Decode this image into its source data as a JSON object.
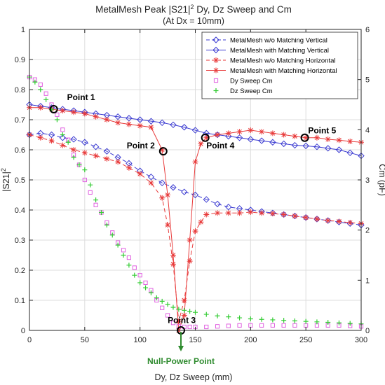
{
  "chart_data": {
    "type": "line",
    "title": "MetalMesh Peak |S21|",
    "title_sup": "2",
    "title_rest": " Dy, Dz Sweep and Cm",
    "subtitle": "(At Dx = 10mm)",
    "xlabel": "Dy, Dz Sweep (mm)",
    "ylabel_left": "|S21|",
    "ylabel_left_sup": "2",
    "ylabel_right": "Cm (pF)",
    "xlim": [
      0,
      300
    ],
    "ylim_left": [
      0,
      1
    ],
    "ylim_right": [
      0,
      6
    ],
    "x_ticks": [
      "0",
      "50",
      "100",
      "150",
      "200",
      "250",
      "300"
    ],
    "y_left_ticks": [
      "0",
      "0.1",
      "0.2",
      "0.3",
      "0.4",
      "0.5",
      "0.6",
      "0.7",
      "0.8",
      "0.9",
      "1"
    ],
    "y_right_ticks": [
      "0",
      "1",
      "2",
      "3",
      "4",
      "5",
      "6"
    ],
    "grid": true,
    "legend_position": "top-right",
    "series": [
      {
        "name": "MetalMesh w/o Matching Vertical",
        "axis": "left",
        "color": "#3b3bd1",
        "dash": true,
        "marker": "diamond",
        "x": [
          0,
          10,
          20,
          30,
          40,
          50,
          60,
          70,
          80,
          90,
          100,
          110,
          120,
          130,
          140,
          150,
          160,
          170,
          180,
          190,
          200,
          210,
          220,
          230,
          240,
          250,
          260,
          270,
          280,
          290,
          300
        ],
        "y": [
          0.65,
          0.655,
          0.65,
          0.64,
          0.635,
          0.625,
          0.61,
          0.595,
          0.575,
          0.555,
          0.53,
          0.51,
          0.49,
          0.475,
          0.46,
          0.45,
          0.435,
          0.42,
          0.41,
          0.405,
          0.4,
          0.395,
          0.39,
          0.385,
          0.38,
          0.375,
          0.37,
          0.365,
          0.36,
          0.355,
          0.35
        ]
      },
      {
        "name": "MetalMesh with Matching Vertical",
        "axis": "left",
        "color": "#3b3bd1",
        "dash": false,
        "marker": "diamond",
        "x": [
          0,
          10,
          20,
          30,
          40,
          50,
          60,
          70,
          80,
          90,
          100,
          110,
          120,
          130,
          140,
          150,
          160,
          170,
          180,
          190,
          200,
          210,
          220,
          230,
          240,
          250,
          260,
          270,
          280,
          290,
          300
        ],
        "y": [
          0.75,
          0.745,
          0.74,
          0.735,
          0.73,
          0.725,
          0.72,
          0.715,
          0.71,
          0.705,
          0.7,
          0.695,
          0.69,
          0.683,
          0.675,
          0.665,
          0.655,
          0.65,
          0.645,
          0.64,
          0.635,
          0.63,
          0.625,
          0.62,
          0.615,
          0.613,
          0.61,
          0.605,
          0.6,
          0.59,
          0.58
        ]
      },
      {
        "name": "MetalMesh w/o Matching Horizontal",
        "axis": "left",
        "color": "#e83a3a",
        "dash": true,
        "marker": "star",
        "x": [
          0,
          10,
          20,
          30,
          40,
          50,
          60,
          70,
          80,
          90,
          100,
          110,
          120,
          125,
          130,
          135,
          140,
          145,
          150,
          155,
          160,
          170,
          180,
          190,
          200,
          210,
          220,
          230,
          240,
          250,
          260,
          270,
          280,
          290,
          300
        ],
        "y": [
          0.65,
          0.64,
          0.63,
          0.615,
          0.6,
          0.59,
          0.58,
          0.57,
          0.56,
          0.54,
          0.52,
          0.49,
          0.44,
          0.35,
          0.22,
          0.03,
          0.1,
          0.23,
          0.33,
          0.36,
          0.385,
          0.39,
          0.39,
          0.39,
          0.393,
          0.39,
          0.388,
          0.385,
          0.38,
          0.375,
          0.37,
          0.365,
          0.362,
          0.358,
          0.355
        ]
      },
      {
        "name": "MetalMesh with Matching Horizontal",
        "axis": "left",
        "color": "#e83a3a",
        "dash": false,
        "marker": "star",
        "x": [
          0,
          10,
          20,
          30,
          40,
          50,
          60,
          70,
          80,
          90,
          100,
          110,
          120,
          125,
          130,
          135,
          140,
          145,
          150,
          155,
          160,
          170,
          180,
          190,
          200,
          210,
          220,
          230,
          240,
          250,
          260,
          270,
          280,
          290,
          300
        ],
        "y": [
          0.74,
          0.74,
          0.735,
          0.73,
          0.725,
          0.72,
          0.71,
          0.7,
          0.69,
          0.685,
          0.68,
          0.675,
          0.6,
          0.45,
          0.25,
          0.0,
          0.05,
          0.3,
          0.56,
          0.62,
          0.64,
          0.65,
          0.655,
          0.66,
          0.665,
          0.66,
          0.655,
          0.65,
          0.645,
          0.64,
          0.64,
          0.635,
          0.632,
          0.628,
          0.625
        ]
      },
      {
        "name": "Dy Sweep Cm",
        "axis": "right",
        "color": "#e060e0",
        "dash": false,
        "marker": "square",
        "x": [
          0,
          5,
          10,
          15,
          20,
          25,
          30,
          35,
          40,
          45,
          50,
          55,
          60,
          65,
          70,
          75,
          80,
          85,
          90,
          95,
          100,
          105,
          110,
          115,
          120,
          125,
          130,
          135,
          140,
          145,
          150,
          160,
          170,
          180,
          190,
          200,
          210,
          220,
          230,
          240,
          250,
          260,
          270,
          280,
          290,
          300
        ],
        "y": [
          5.05,
          5.0,
          4.9,
          4.72,
          4.5,
          4.3,
          4.0,
          3.8,
          3.5,
          3.3,
          3.0,
          2.75,
          2.5,
          2.35,
          2.15,
          1.95,
          1.75,
          1.6,
          1.45,
          1.25,
          1.1,
          0.95,
          0.8,
          0.6,
          0.45,
          0.3,
          0.15,
          0.08,
          0.07,
          0.07,
          0.07,
          0.07,
          0.08,
          0.09,
          0.1,
          0.1,
          0.1,
          0.1,
          0.1,
          0.1,
          0.1,
          0.1,
          0.1,
          0.1,
          0.09,
          0.08
        ]
      },
      {
        "name": "Dz Sweep Cm",
        "axis": "right",
        "color": "#33cc33",
        "dash": false,
        "marker": "plus",
        "x": [
          0,
          5,
          10,
          15,
          20,
          25,
          30,
          35,
          40,
          45,
          50,
          55,
          60,
          65,
          70,
          75,
          80,
          85,
          90,
          95,
          100,
          105,
          110,
          115,
          120,
          125,
          130,
          135,
          140,
          145,
          150,
          160,
          170,
          180,
          190,
          200,
          210,
          220,
          230,
          240,
          250,
          260,
          270,
          280,
          290,
          300
        ],
        "y": [
          5.05,
          4.95,
          4.8,
          4.6,
          4.4,
          4.2,
          3.9,
          3.75,
          3.45,
          3.3,
          3.2,
          2.9,
          2.6,
          2.35,
          2.1,
          1.9,
          1.7,
          1.5,
          1.3,
          1.1,
          0.95,
          0.85,
          0.75,
          0.65,
          0.58,
          0.52,
          0.46,
          0.42,
          0.4,
          0.38,
          0.36,
          0.32,
          0.29,
          0.27,
          0.25,
          0.23,
          0.22,
          0.21,
          0.2,
          0.19,
          0.18,
          0.17,
          0.16,
          0.15,
          0.14,
          0.13
        ]
      }
    ],
    "annotations": [
      {
        "label": "Point 1",
        "x": 22,
        "y": 0.735,
        "lx": 34,
        "ly": 0.765,
        "anchor": "start"
      },
      {
        "label": "Point 2",
        "x": 121,
        "y": 0.595,
        "lx": 88,
        "ly": 0.605,
        "anchor": "start"
      },
      {
        "label": "Point 3",
        "x": 137,
        "y": 0.0,
        "lx": 125,
        "ly": 0.025,
        "anchor": "start"
      },
      {
        "label": "Point 4",
        "x": 159,
        "y": 0.64,
        "lx": 160,
        "ly": 0.605,
        "anchor": "start"
      },
      {
        "label": "Point 5",
        "x": 249,
        "y": 0.64,
        "lx": 252,
        "ly": 0.655,
        "anchor": "start"
      }
    ],
    "null_point": {
      "label": "Null-Power Point",
      "x": 137
    }
  }
}
